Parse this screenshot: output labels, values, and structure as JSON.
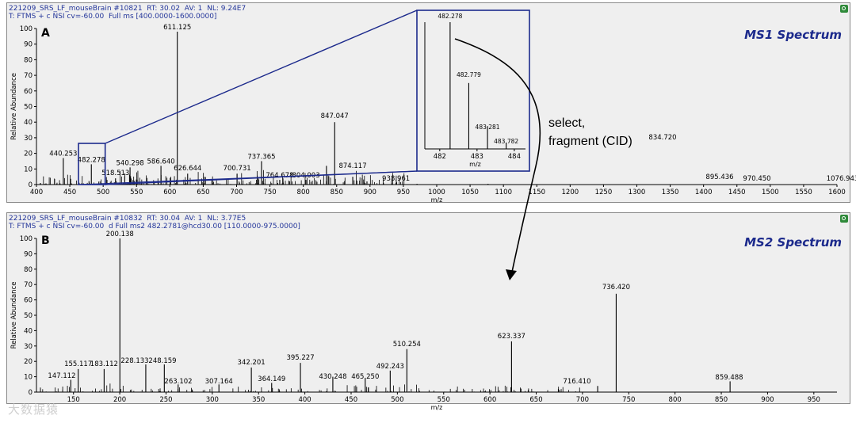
{
  "panel_a": {
    "header_line1": "221209_SRS_LF_mouseBrain #10821  RT: 30.02  AV: 1  NL: 9.24E7",
    "header_line2": "T: FTMS + c NSI cv=-60.00  Full ms [400.0000-1600.0000]",
    "letter": "A",
    "spectrum_title": "MS1 Spectrum"
  },
  "panel_b": {
    "header_line1": "221209_SRS_LF_mouseBrain #10832  RT: 30.04  AV: 1  NL: 3.77E5",
    "header_line2": "T: FTMS + c NSI cv=-60.00  d Full ms2 482.2781@hcd30.00 [110.0000-975.0000]",
    "letter": "B",
    "spectrum_title": "MS2 Spectrum"
  },
  "annotation": {
    "line1": "select,",
    "line2": "fragment (CID)"
  },
  "watermark": "大数据猿",
  "colors": {
    "header": "#23359a",
    "title": "#1c2a8c",
    "zoom_box": "#1c2a8c",
    "peak": "#000000",
    "label_leader": "#3cb04a"
  },
  "chart_data": [
    {
      "type": "bar",
      "title": "MS1 Spectrum",
      "xlabel": "m/z",
      "ylabel": "Relative Abundance",
      "xlim": [
        400,
        1600
      ],
      "ylim": [
        0,
        100
      ],
      "xticks": [
        400,
        450,
        500,
        550,
        600,
        650,
        700,
        750,
        800,
        850,
        900,
        950,
        1000,
        1050,
        1100,
        1150,
        1200,
        1250,
        1300,
        1350,
        1400,
        1450,
        1500,
        1550,
        1600
      ],
      "yticks": [
        0,
        10,
        20,
        30,
        40,
        50,
        60,
        70,
        80,
        90,
        100
      ],
      "peaks": [
        {
          "mz": 440.253,
          "intensity": 17,
          "label": "440.253"
        },
        {
          "mz": 482.278,
          "intensity": 13,
          "label": "482.278"
        },
        {
          "mz": 518.513,
          "intensity": 4,
          "label": "518.513"
        },
        {
          "mz": 540.298,
          "intensity": 11,
          "label": "540.298"
        },
        {
          "mz": 586.64,
          "intensity": 12,
          "label": "586.640"
        },
        {
          "mz": 611.125,
          "intensity": 98,
          "label": "611.125"
        },
        {
          "mz": 626.644,
          "intensity": 7,
          "label": "626.644"
        },
        {
          "mz": 700.731,
          "intensity": 7,
          "label": "700.731"
        },
        {
          "mz": 737.365,
          "intensity": 15,
          "label": "737.365"
        },
        {
          "mz": 764.678,
          "intensity": 3,
          "label": "764.678"
        },
        {
          "mz": 804.003,
          "intensity": 3,
          "label": "804.003"
        },
        {
          "mz": 834.72,
          "intensity": 12,
          "label": "834.720"
        },
        {
          "mz": 847.047,
          "intensity": 40,
          "label": "847.047"
        },
        {
          "mz": 874.117,
          "intensity": 5,
          "label": "874.117"
        },
        {
          "mz": 895.436,
          "intensity": 2,
          "label": "895.436"
        },
        {
          "mz": 938.961,
          "intensity": 1,
          "label": "938.961"
        },
        {
          "mz": 970.45,
          "intensity": 0.5,
          "label": "970.450"
        },
        {
          "mz": 1076.943,
          "intensity": 0.5,
          "label": "1076.943"
        }
      ]
    },
    {
      "type": "bar",
      "title": "",
      "xlabel": "m/z",
      "xlim": [
        481.6,
        484.3
      ],
      "xticks": [
        482,
        483,
        484
      ],
      "peaks": [
        {
          "mz": 482.278,
          "intensity": 100,
          "label": "482.278"
        },
        {
          "mz": 482.779,
          "intensity": 52,
          "label": "482.779"
        },
        {
          "mz": 483.281,
          "intensity": 18,
          "label": "483.281"
        },
        {
          "mz": 483.782,
          "intensity": 5,
          "label": "483.782"
        }
      ]
    },
    {
      "type": "bar",
      "title": "MS2 Spectrum",
      "xlabel": "m/z",
      "ylabel": "Relative Abundance",
      "xlim": [
        110,
        975
      ],
      "ylim": [
        0,
        100
      ],
      "xticks": [
        150,
        200,
        250,
        300,
        350,
        400,
        450,
        500,
        550,
        600,
        650,
        700,
        750,
        800,
        850,
        900,
        950
      ],
      "yticks": [
        0,
        10,
        20,
        30,
        40,
        50,
        60,
        70,
        80,
        90,
        100
      ],
      "peaks": [
        {
          "mz": 147.112,
          "intensity": 8,
          "label": "147.112"
        },
        {
          "mz": 155.117,
          "intensity": 15,
          "label": "155.117"
        },
        {
          "mz": 183.112,
          "intensity": 15,
          "label": "183.112"
        },
        {
          "mz": 200.138,
          "intensity": 100,
          "label": "200.138"
        },
        {
          "mz": 228.133,
          "intensity": 18,
          "label": "228.133"
        },
        {
          "mz": 248.159,
          "intensity": 18,
          "label": "248.159"
        },
        {
          "mz": 263.102,
          "intensity": 5,
          "label": "263.102"
        },
        {
          "mz": 307.164,
          "intensity": 5,
          "label": "307.164"
        },
        {
          "mz": 342.201,
          "intensity": 16,
          "label": "342.201"
        },
        {
          "mz": 364.149,
          "intensity": 6,
          "label": "364.149"
        },
        {
          "mz": 395.227,
          "intensity": 19,
          "label": "395.227"
        },
        {
          "mz": 430.248,
          "intensity": 10,
          "label": "430.248"
        },
        {
          "mz": 465.25,
          "intensity": 9,
          "label": "465.250"
        },
        {
          "mz": 492.243,
          "intensity": 14,
          "label": "492.243"
        },
        {
          "mz": 510.254,
          "intensity": 28,
          "label": "510.254"
        },
        {
          "mz": 623.337,
          "intensity": 33,
          "label": "623.337"
        },
        {
          "mz": 716.41,
          "intensity": 4,
          "label": "716.410"
        },
        {
          "mz": 736.42,
          "intensity": 64,
          "label": "736.420"
        },
        {
          "mz": 859.488,
          "intensity": 7,
          "label": "859.488"
        }
      ]
    }
  ]
}
